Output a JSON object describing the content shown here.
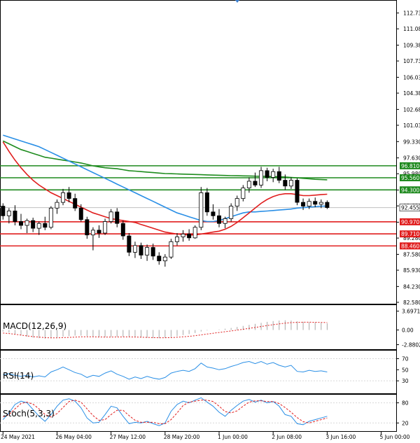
{
  "chart_data": [
    {
      "type": "candlestick",
      "pane": "price",
      "y_ticks": [
        112.73,
        111.08,
        109.38,
        107.73,
        106.03,
        104.38,
        102.68,
        101.03,
        99.33,
        97.63,
        95.98,
        94.28,
        92.63,
        90.93,
        89.28,
        87.58,
        85.93,
        84.23,
        82.58
      ],
      "y_tick_labels": [
        "112.730",
        "111.080",
        "109.380",
        "107.730",
        "106.030",
        "104.380",
        "102.680",
        "101.030",
        "99.330",
        "97.630",
        "95.980",
        "94.280",
        "92.630",
        "90.930",
        "89.280",
        "87.580",
        "85.930",
        "84.230",
        "82.580"
      ],
      "ylim": [
        82.58,
        113.5
      ],
      "x_labels": [
        "24 May 2021",
        "26 May 04:00",
        "27 May 12:00",
        "28 May 20:00",
        "1 Jun 00:00",
        "2 Jun 08:00",
        "3 Jun 16:00",
        "5 Jun 00:00"
      ],
      "x_label_index": [
        0,
        9,
        18,
        27,
        36,
        45,
        54,
        63
      ],
      "n_bars": 66,
      "candles": [
        [
          92.6,
          92.9,
          91.2,
          91.6
        ],
        [
          91.6,
          92.4,
          90.8,
          92.1
        ],
        [
          92.1,
          92.7,
          90.6,
          91.0
        ],
        [
          91.0,
          91.8,
          90.2,
          90.6
        ],
        [
          90.6,
          91.3,
          89.8,
          91.1
        ],
        [
          91.1,
          91.4,
          89.9,
          90.3
        ],
        [
          90.3,
          91.0,
          89.6,
          90.8
        ],
        [
          90.8,
          91.5,
          90.1,
          90.4
        ],
        [
          90.4,
          92.6,
          90.2,
          92.4
        ],
        [
          92.4,
          93.3,
          91.8,
          93.0
        ],
        [
          93.0,
          94.4,
          92.7,
          94.0
        ],
        [
          94.0,
          94.6,
          93.0,
          93.4
        ],
        [
          93.4,
          93.9,
          92.1,
          92.4
        ],
        [
          92.4,
          92.8,
          91.0,
          91.2
        ],
        [
          91.2,
          91.5,
          89.2,
          89.6
        ],
        [
          89.6,
          90.4,
          88.0,
          90.1
        ],
        [
          90.1,
          90.6,
          89.3,
          89.8
        ],
        [
          89.8,
          91.3,
          89.6,
          91.0
        ],
        [
          91.0,
          92.3,
          90.8,
          92.0
        ],
        [
          92.0,
          92.4,
          90.4,
          90.8
        ],
        [
          90.8,
          91.1,
          89.1,
          89.5
        ],
        [
          89.5,
          89.8,
          87.4,
          87.8
        ],
        [
          87.8,
          88.9,
          87.2,
          88.5
        ],
        [
          88.5,
          88.8,
          87.1,
          87.5
        ],
        [
          87.5,
          88.6,
          86.9,
          88.3
        ],
        [
          88.3,
          88.7,
          87.0,
          87.4
        ],
        [
          87.4,
          87.8,
          86.5,
          86.9
        ],
        [
          86.9,
          87.6,
          86.3,
          87.3
        ],
        [
          87.3,
          89.2,
          87.1,
          88.9
        ],
        [
          88.9,
          89.8,
          88.5,
          89.4
        ],
        [
          89.4,
          90.1,
          88.9,
          89.7
        ],
        [
          89.7,
          90.2,
          89.0,
          89.3
        ],
        [
          89.3,
          90.6,
          89.2,
          90.4
        ],
        [
          90.4,
          94.6,
          90.1,
          94.0
        ],
        [
          94.0,
          94.5,
          91.6,
          92.0
        ],
        [
          92.0,
          92.8,
          91.2,
          91.6
        ],
        [
          91.6,
          92.3,
          90.4,
          90.8
        ],
        [
          90.8,
          91.5,
          90.3,
          91.3
        ],
        [
          91.3,
          92.9,
          91.0,
          92.6
        ],
        [
          92.6,
          93.7,
          92.1,
          93.4
        ],
        [
          93.4,
          94.8,
          93.1,
          94.5
        ],
        [
          94.5,
          95.6,
          94.0,
          95.2
        ],
        [
          95.2,
          96.1,
          94.6,
          94.8
        ],
        [
          94.8,
          96.7,
          94.5,
          96.3
        ],
        [
          96.3,
          96.6,
          95.2,
          95.6
        ],
        [
          95.6,
          96.5,
          95.1,
          96.2
        ],
        [
          96.2,
          96.7,
          95.0,
          95.3
        ],
        [
          95.3,
          95.9,
          94.3,
          94.7
        ],
        [
          94.7,
          95.6,
          94.4,
          95.3
        ],
        [
          95.3,
          95.5,
          92.7,
          93.0
        ],
        [
          93.0,
          93.4,
          92.2,
          92.6
        ],
        [
          92.6,
          93.4,
          92.3,
          93.1
        ],
        [
          93.1,
          93.5,
          92.5,
          92.8
        ],
        [
          92.8,
          93.3,
          92.4,
          93.0
        ],
        [
          93.0,
          93.2,
          92.3,
          92.455
        ]
      ],
      "levels": [
        {
          "value": 96.81,
          "label": "96.810",
          "color": "#1f8a1f"
        },
        {
          "value": 95.56,
          "label": "95.560",
          "color": "#1f8a1f"
        },
        {
          "value": 94.3,
          "label": "94.300",
          "color": "#1f8a1f"
        },
        {
          "value": 90.97,
          "label": "90.970",
          "color": "#e01e1e"
        },
        {
          "value": 89.71,
          "label": "89.710",
          "color": "#e01e1e"
        },
        {
          "value": 88.46,
          "label": "88.460",
          "color": "#e01e1e"
        }
      ],
      "current_price": {
        "value": 92.455,
        "label": "92.455"
      },
      "moving_averages": [
        {
          "color": "#1e8c1e",
          "values": [
            99.4,
            99.1,
            98.8,
            98.5,
            98.3,
            98.1,
            97.9,
            97.7,
            97.6,
            97.5,
            97.4,
            97.3,
            97.2,
            97.1,
            96.95,
            96.8,
            96.7,
            96.6,
            96.55,
            96.5,
            96.4,
            96.3,
            96.25,
            96.2,
            96.15,
            96.1,
            96.05,
            96.0,
            95.98,
            95.96,
            95.94,
            95.92,
            95.9,
            95.88,
            95.86,
            95.84,
            95.82,
            95.8,
            95.78,
            95.77,
            95.76,
            95.75,
            95.73,
            95.72,
            95.7,
            95.68,
            95.66,
            95.64,
            95.6,
            95.55,
            95.5,
            95.45,
            95.4,
            95.37,
            95.35
          ]
        },
        {
          "color": "#2a8fe6",
          "values": [
            100.0,
            99.8,
            99.6,
            99.4,
            99.2,
            99.0,
            98.8,
            98.5,
            98.2,
            97.9,
            97.6,
            97.3,
            97.0,
            96.7,
            96.4,
            96.1,
            95.8,
            95.5,
            95.2,
            94.9,
            94.6,
            94.3,
            94.0,
            93.7,
            93.4,
            93.1,
            92.8,
            92.5,
            92.2,
            91.9,
            91.7,
            91.5,
            91.3,
            91.1,
            91.0,
            91.0,
            91.1,
            91.3,
            91.5,
            91.7,
            91.9,
            92.0,
            92.0,
            92.05,
            92.1,
            92.15,
            92.2,
            92.25,
            92.3,
            92.4,
            92.45,
            92.5,
            92.55,
            92.6,
            92.6
          ]
        },
        {
          "color": "#e01e1e",
          "values": [
            99.3,
            98.3,
            97.4,
            96.6,
            95.9,
            95.3,
            94.8,
            94.4,
            94.0,
            93.7,
            93.4,
            93.1,
            92.8,
            92.5,
            92.2,
            91.9,
            91.7,
            91.5,
            91.3,
            91.2,
            91.1,
            91.0,
            90.9,
            90.7,
            90.5,
            90.3,
            90.1,
            89.9,
            89.8,
            89.7,
            89.65,
            89.6,
            89.6,
            89.7,
            89.8,
            89.9,
            90.0,
            90.2,
            90.5,
            90.9,
            91.4,
            91.9,
            92.4,
            92.9,
            93.3,
            93.6,
            93.8,
            93.9,
            93.9,
            93.8,
            93.7,
            93.7,
            93.75,
            93.8,
            93.85
          ]
        }
      ]
    },
    {
      "type": "bar",
      "pane": "macd",
      "title": "MACD(12,26,9)",
      "y_tick_labels": [
        "3.6971",
        "0.00",
        "-2.8802"
      ],
      "y_ticks": [
        3.6971,
        0.0,
        -2.8802
      ],
      "ylim": [
        -3.5,
        4.6
      ],
      "histogram": [
        -0.3,
        -0.5,
        -0.8,
        -1.1,
        -1.3,
        -1.5,
        -1.6,
        -1.7,
        -1.6,
        -1.5,
        -1.3,
        -1.2,
        -1.1,
        -1.1,
        -1.2,
        -1.3,
        -1.4,
        -1.4,
        -1.35,
        -1.3,
        -1.3,
        -1.35,
        -1.4,
        -1.5,
        -1.55,
        -1.6,
        -1.6,
        -1.55,
        -1.4,
        -1.2,
        -1.0,
        -0.8,
        -0.6,
        -0.3,
        -0.1,
        0.0,
        0.1,
        0.25,
        0.4,
        0.6,
        0.8,
        1.0,
        1.2,
        1.4,
        1.6,
        1.75,
        1.85,
        1.9,
        1.85,
        1.7,
        1.6,
        1.5,
        1.45,
        1.4,
        1.3
      ],
      "signal": [
        -0.6,
        -0.7,
        -0.85,
        -1.0,
        -1.15,
        -1.3,
        -1.4,
        -1.5,
        -1.55,
        -1.55,
        -1.5,
        -1.45,
        -1.4,
        -1.35,
        -1.35,
        -1.35,
        -1.37,
        -1.38,
        -1.38,
        -1.37,
        -1.36,
        -1.36,
        -1.38,
        -1.41,
        -1.45,
        -1.5,
        -1.52,
        -1.52,
        -1.49,
        -1.43,
        -1.35,
        -1.25,
        -1.12,
        -0.96,
        -0.8,
        -0.64,
        -0.49,
        -0.34,
        -0.19,
        -0.03,
        0.14,
        0.31,
        0.49,
        0.67,
        0.86,
        1.04,
        1.2,
        1.34,
        1.44,
        1.5,
        1.52,
        1.52,
        1.51,
        1.49,
        1.45
      ]
    },
    {
      "type": "line",
      "pane": "rsi",
      "title": "RSI(14)",
      "y_tick_labels": [
        "70",
        "50",
        "30"
      ],
      "y_ticks": [
        70,
        50,
        30
      ],
      "ylim": [
        10,
        82
      ],
      "values": [
        41,
        43,
        40,
        38,
        40,
        37,
        39,
        37,
        46,
        50,
        55,
        50,
        45,
        42,
        36,
        40,
        38,
        44,
        48,
        42,
        38,
        33,
        37,
        34,
        38,
        35,
        33,
        36,
        44,
        47,
        49,
        47,
        52,
        62,
        55,
        53,
        50,
        52,
        56,
        59,
        63,
        65,
        61,
        65,
        60,
        63,
        58,
        55,
        58,
        47,
        46,
        49,
        47,
        48,
        46
      ]
    },
    {
      "type": "line",
      "pane": "stochastic",
      "title": "Stoch(5,3,3)",
      "y_tick_labels": [
        "80",
        "20"
      ],
      "y_ticks": [
        80,
        20
      ],
      "ylim": [
        0,
        100
      ],
      "k": [
        30,
        50,
        75,
        85,
        80,
        60,
        40,
        25,
        45,
        70,
        88,
        92,
        85,
        65,
        35,
        20,
        22,
        45,
        70,
        65,
        40,
        18,
        22,
        20,
        25,
        18,
        12,
        20,
        55,
        75,
        85,
        80,
        88,
        95,
        82,
        70,
        52,
        40,
        58,
        72,
        85,
        90,
        82,
        88,
        80,
        84,
        70,
        45,
        40,
        18,
        15,
        25,
        30,
        35,
        40
      ],
      "d": [
        38,
        45,
        62,
        78,
        82,
        76,
        62,
        45,
        38,
        48,
        66,
        84,
        88,
        82,
        62,
        42,
        28,
        30,
        45,
        58,
        58,
        42,
        28,
        22,
        22,
        22,
        18,
        18,
        30,
        50,
        72,
        82,
        85,
        88,
        88,
        84,
        70,
        54,
        50,
        56,
        70,
        82,
        86,
        86,
        84,
        84,
        78,
        66,
        52,
        36,
        24,
        20,
        25,
        30,
        35
      ]
    }
  ]
}
